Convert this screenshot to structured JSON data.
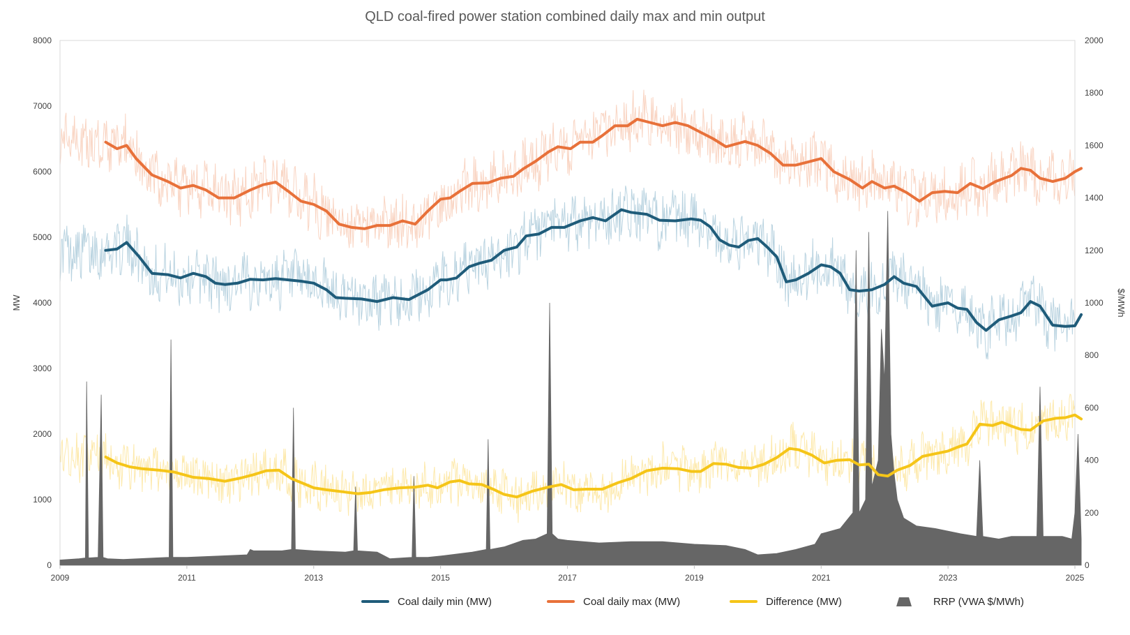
{
  "chart_data": {
    "type": "line",
    "title": "QLD coal-fired power station combined daily max and min output",
    "ylabel": "MW",
    "y2label": "$/MWh",
    "ylim": [
      0,
      8000
    ],
    "y2lim": [
      0,
      2000
    ],
    "xlim": [
      2009,
      2025
    ],
    "y_ticks": [
      "0",
      "1000",
      "2000",
      "3000",
      "4000",
      "5000",
      "6000",
      "7000",
      "8000"
    ],
    "y2_ticks": [
      "0",
      "200",
      "400",
      "600",
      "800",
      "1000",
      "1200",
      "1400",
      "1600",
      "1800",
      "2000"
    ],
    "x_ticks": [
      "2009",
      "2011",
      "2013",
      "2015",
      "2017",
      "2019",
      "2021",
      "2023",
      "2025"
    ],
    "legend_position": "bottom",
    "series": [
      {
        "name": "Coal daily min (MW)",
        "color": "#1f5c7a",
        "raw_color": "#b9d3e0",
        "x": [
          2009.72,
          2009.9,
          2010.05,
          2010.25,
          2010.45,
          2010.7,
          2010.9,
          2011.1,
          2011.3,
          2011.45,
          2011.6,
          2011.8,
          2012.0,
          2012.2,
          2012.4,
          2012.6,
          2012.8,
          2013.0,
          2013.2,
          2013.35,
          2013.5,
          2013.75,
          2014.0,
          2014.25,
          2014.5,
          2014.8,
          2015.0,
          2015.1,
          2015.25,
          2015.45,
          2015.6,
          2015.8,
          2016.0,
          2016.2,
          2016.35,
          2016.55,
          2016.75,
          2016.95,
          2017.2,
          2017.4,
          2017.6,
          2017.85,
          2018.0,
          2018.25,
          2018.45,
          2018.7,
          2018.95,
          2019.1,
          2019.25,
          2019.4,
          2019.55,
          2019.7,
          2019.85,
          2020.0,
          2020.15,
          2020.3,
          2020.45,
          2020.6,
          2020.8,
          2021.0,
          2021.15,
          2021.3,
          2021.45,
          2021.6,
          2021.8,
          2022.0,
          2022.15,
          2022.3,
          2022.5,
          2022.75,
          2023.0,
          2023.15,
          2023.3,
          2023.45,
          2023.6,
          2023.8,
          2024.0,
          2024.15,
          2024.3,
          2024.45,
          2024.65,
          2024.85,
          2025.0,
          2025.1
        ],
        "values": [
          4800,
          4820,
          4920,
          4700,
          4450,
          4430,
          4380,
          4450,
          4400,
          4300,
          4280,
          4300,
          4360,
          4350,
          4370,
          4350,
          4330,
          4300,
          4200,
          4080,
          4070,
          4060,
          4020,
          4080,
          4050,
          4200,
          4350,
          4350,
          4380,
          4550,
          4600,
          4650,
          4800,
          4850,
          5020,
          5050,
          5150,
          5150,
          5250,
          5300,
          5250,
          5420,
          5380,
          5350,
          5260,
          5250,
          5280,
          5260,
          5160,
          4960,
          4880,
          4850,
          4950,
          4980,
          4850,
          4700,
          4320,
          4350,
          4450,
          4580,
          4550,
          4450,
          4200,
          4180,
          4200,
          4280,
          4400,
          4300,
          4250,
          3950,
          4000,
          3920,
          3900,
          3700,
          3580,
          3740,
          3800,
          3850,
          4020,
          3950,
          3660,
          3640,
          3650,
          3820
        ]
      },
      {
        "name": "Coal daily max (MW)",
        "color": "#e8713a",
        "raw_color": "#f9d4c2",
        "x": [
          2009.72,
          2009.9,
          2010.05,
          2010.2,
          2010.45,
          2010.7,
          2010.9,
          2011.1,
          2011.3,
          2011.5,
          2011.75,
          2012.0,
          2012.2,
          2012.4,
          2012.6,
          2012.8,
          2013.0,
          2013.2,
          2013.4,
          2013.6,
          2013.8,
          2014.0,
          2014.2,
          2014.4,
          2014.6,
          2014.8,
          2015.0,
          2015.15,
          2015.3,
          2015.5,
          2015.75,
          2015.95,
          2016.15,
          2016.3,
          2016.5,
          2016.7,
          2016.85,
          2017.05,
          2017.2,
          2017.4,
          2017.55,
          2017.75,
          2017.95,
          2018.1,
          2018.3,
          2018.5,
          2018.7,
          2018.9,
          2019.1,
          2019.3,
          2019.5,
          2019.65,
          2019.8,
          2020.0,
          2020.2,
          2020.4,
          2020.6,
          2020.8,
          2021.0,
          2021.2,
          2021.45,
          2021.65,
          2021.8,
          2022.0,
          2022.15,
          2022.35,
          2022.55,
          2022.75,
          2022.95,
          2023.15,
          2023.35,
          2023.55,
          2023.75,
          2024.0,
          2024.15,
          2024.3,
          2024.45,
          2024.65,
          2024.85,
          2025.0,
          2025.1
        ],
        "values": [
          6450,
          6350,
          6400,
          6200,
          5950,
          5850,
          5750,
          5790,
          5720,
          5600,
          5600,
          5720,
          5800,
          5840,
          5700,
          5550,
          5500,
          5400,
          5200,
          5150,
          5130,
          5180,
          5180,
          5250,
          5200,
          5400,
          5580,
          5600,
          5700,
          5820,
          5830,
          5900,
          5930,
          6040,
          6160,
          6300,
          6380,
          6350,
          6450,
          6450,
          6550,
          6700,
          6700,
          6800,
          6750,
          6700,
          6750,
          6700,
          6600,
          6500,
          6380,
          6420,
          6460,
          6400,
          6280,
          6100,
          6100,
          6150,
          6200,
          6000,
          5880,
          5750,
          5850,
          5750,
          5780,
          5680,
          5550,
          5680,
          5700,
          5680,
          5820,
          5740,
          5850,
          5940,
          6050,
          6020,
          5900,
          5850,
          5900,
          6000,
          6050
        ]
      },
      {
        "name": "Difference (MW)",
        "color": "#f5c518",
        "raw_color": "#fde9ab",
        "x": [
          2009.72,
          2009.9,
          2010.1,
          2010.3,
          2010.55,
          2010.8,
          2011.1,
          2011.35,
          2011.6,
          2011.85,
          2012.05,
          2012.25,
          2012.45,
          2012.65,
          2012.85,
          2013.0,
          2013.2,
          2013.45,
          2013.7,
          2013.9,
          2014.1,
          2014.35,
          2014.6,
          2014.8,
          2014.95,
          2015.15,
          2015.3,
          2015.45,
          2015.65,
          2015.85,
          2016.0,
          2016.2,
          2016.45,
          2016.7,
          2016.9,
          2017.1,
          2017.3,
          2017.55,
          2017.8,
          2018.0,
          2018.25,
          2018.5,
          2018.75,
          2018.95,
          2019.1,
          2019.3,
          2019.5,
          2019.7,
          2019.9,
          2020.1,
          2020.3,
          2020.5,
          2020.65,
          2020.85,
          2021.05,
          2021.25,
          2021.45,
          2021.6,
          2021.75,
          2021.9,
          2022.05,
          2022.2,
          2022.4,
          2022.6,
          2022.8,
          2023.0,
          2023.15,
          2023.3,
          2023.5,
          2023.7,
          2023.85,
          2024.0,
          2024.15,
          2024.3,
          2024.5,
          2024.7,
          2024.85,
          2025.0,
          2025.1
        ],
        "values": [
          1650,
          1560,
          1500,
          1470,
          1450,
          1420,
          1340,
          1320,
          1280,
          1330,
          1380,
          1440,
          1450,
          1320,
          1240,
          1180,
          1150,
          1120,
          1090,
          1110,
          1150,
          1180,
          1190,
          1220,
          1180,
          1270,
          1290,
          1240,
          1230,
          1150,
          1080,
          1040,
          1130,
          1190,
          1230,
          1150,
          1160,
          1160,
          1260,
          1320,
          1440,
          1480,
          1470,
          1430,
          1430,
          1550,
          1540,
          1490,
          1480,
          1540,
          1640,
          1780,
          1760,
          1680,
          1560,
          1600,
          1610,
          1530,
          1540,
          1380,
          1360,
          1450,
          1520,
          1660,
          1700,
          1740,
          1800,
          1850,
          2150,
          2130,
          2180,
          2120,
          2070,
          2060,
          2200,
          2240,
          2250,
          2290,
          2230
        ]
      },
      {
        "name": "RRP (VWA $/MWh)",
        "color": "#666666",
        "axis": "secondary",
        "x": [
          2009.0,
          2009.3,
          2009.4,
          2009.42,
          2009.45,
          2009.6,
          2009.65,
          2009.68,
          2009.75,
          2010.0,
          2010.5,
          2010.72,
          2010.75,
          2010.78,
          2011.0,
          2011.5,
          2011.95,
          2012.0,
          2012.05,
          2012.5,
          2012.65,
          2012.68,
          2012.71,
          2013.0,
          2013.5,
          2013.63,
          2013.66,
          2013.69,
          2014.0,
          2014.2,
          2014.55,
          2014.58,
          2014.61,
          2014.8,
          2015.0,
          2015.5,
          2015.72,
          2015.75,
          2015.78,
          2016.0,
          2016.3,
          2016.5,
          2016.68,
          2016.72,
          2016.76,
          2016.85,
          2017.0,
          2017.5,
          2018.0,
          2018.5,
          2019.0,
          2019.5,
          2019.8,
          2020.0,
          2020.3,
          2020.6,
          2020.9,
          2021.0,
          2021.3,
          2021.5,
          2021.55,
          2021.6,
          2021.7,
          2021.75,
          2021.8,
          2021.9,
          2021.95,
          2022.0,
          2022.05,
          2022.1,
          2022.15,
          2022.2,
          2022.3,
          2022.5,
          2022.8,
          2023.0,
          2023.2,
          2023.45,
          2023.5,
          2023.55,
          2023.8,
          2024.0,
          2024.1,
          2024.4,
          2024.45,
          2024.5,
          2024.8,
          2024.95,
          2025.0,
          2025.05,
          2025.1
        ],
        "values": [
          20,
          25,
          28,
          700,
          28,
          30,
          650,
          30,
          25,
          22,
          28,
          30,
          860,
          30,
          30,
          35,
          40,
          60,
          55,
          55,
          60,
          600,
          60,
          55,
          50,
          55,
          300,
          55,
          50,
          25,
          30,
          340,
          30,
          30,
          35,
          50,
          60,
          480,
          60,
          70,
          95,
          100,
          120,
          1000,
          120,
          100,
          95,
          85,
          90,
          90,
          80,
          75,
          60,
          40,
          45,
          60,
          80,
          120,
          140,
          200,
          1200,
          200,
          250,
          1270,
          300,
          400,
          900,
          700,
          1350,
          500,
          350,
          250,
          180,
          150,
          140,
          130,
          120,
          110,
          400,
          110,
          100,
          110,
          110,
          110,
          680,
          110,
          110,
          100,
          200,
          500,
          100
        ]
      }
    ]
  }
}
